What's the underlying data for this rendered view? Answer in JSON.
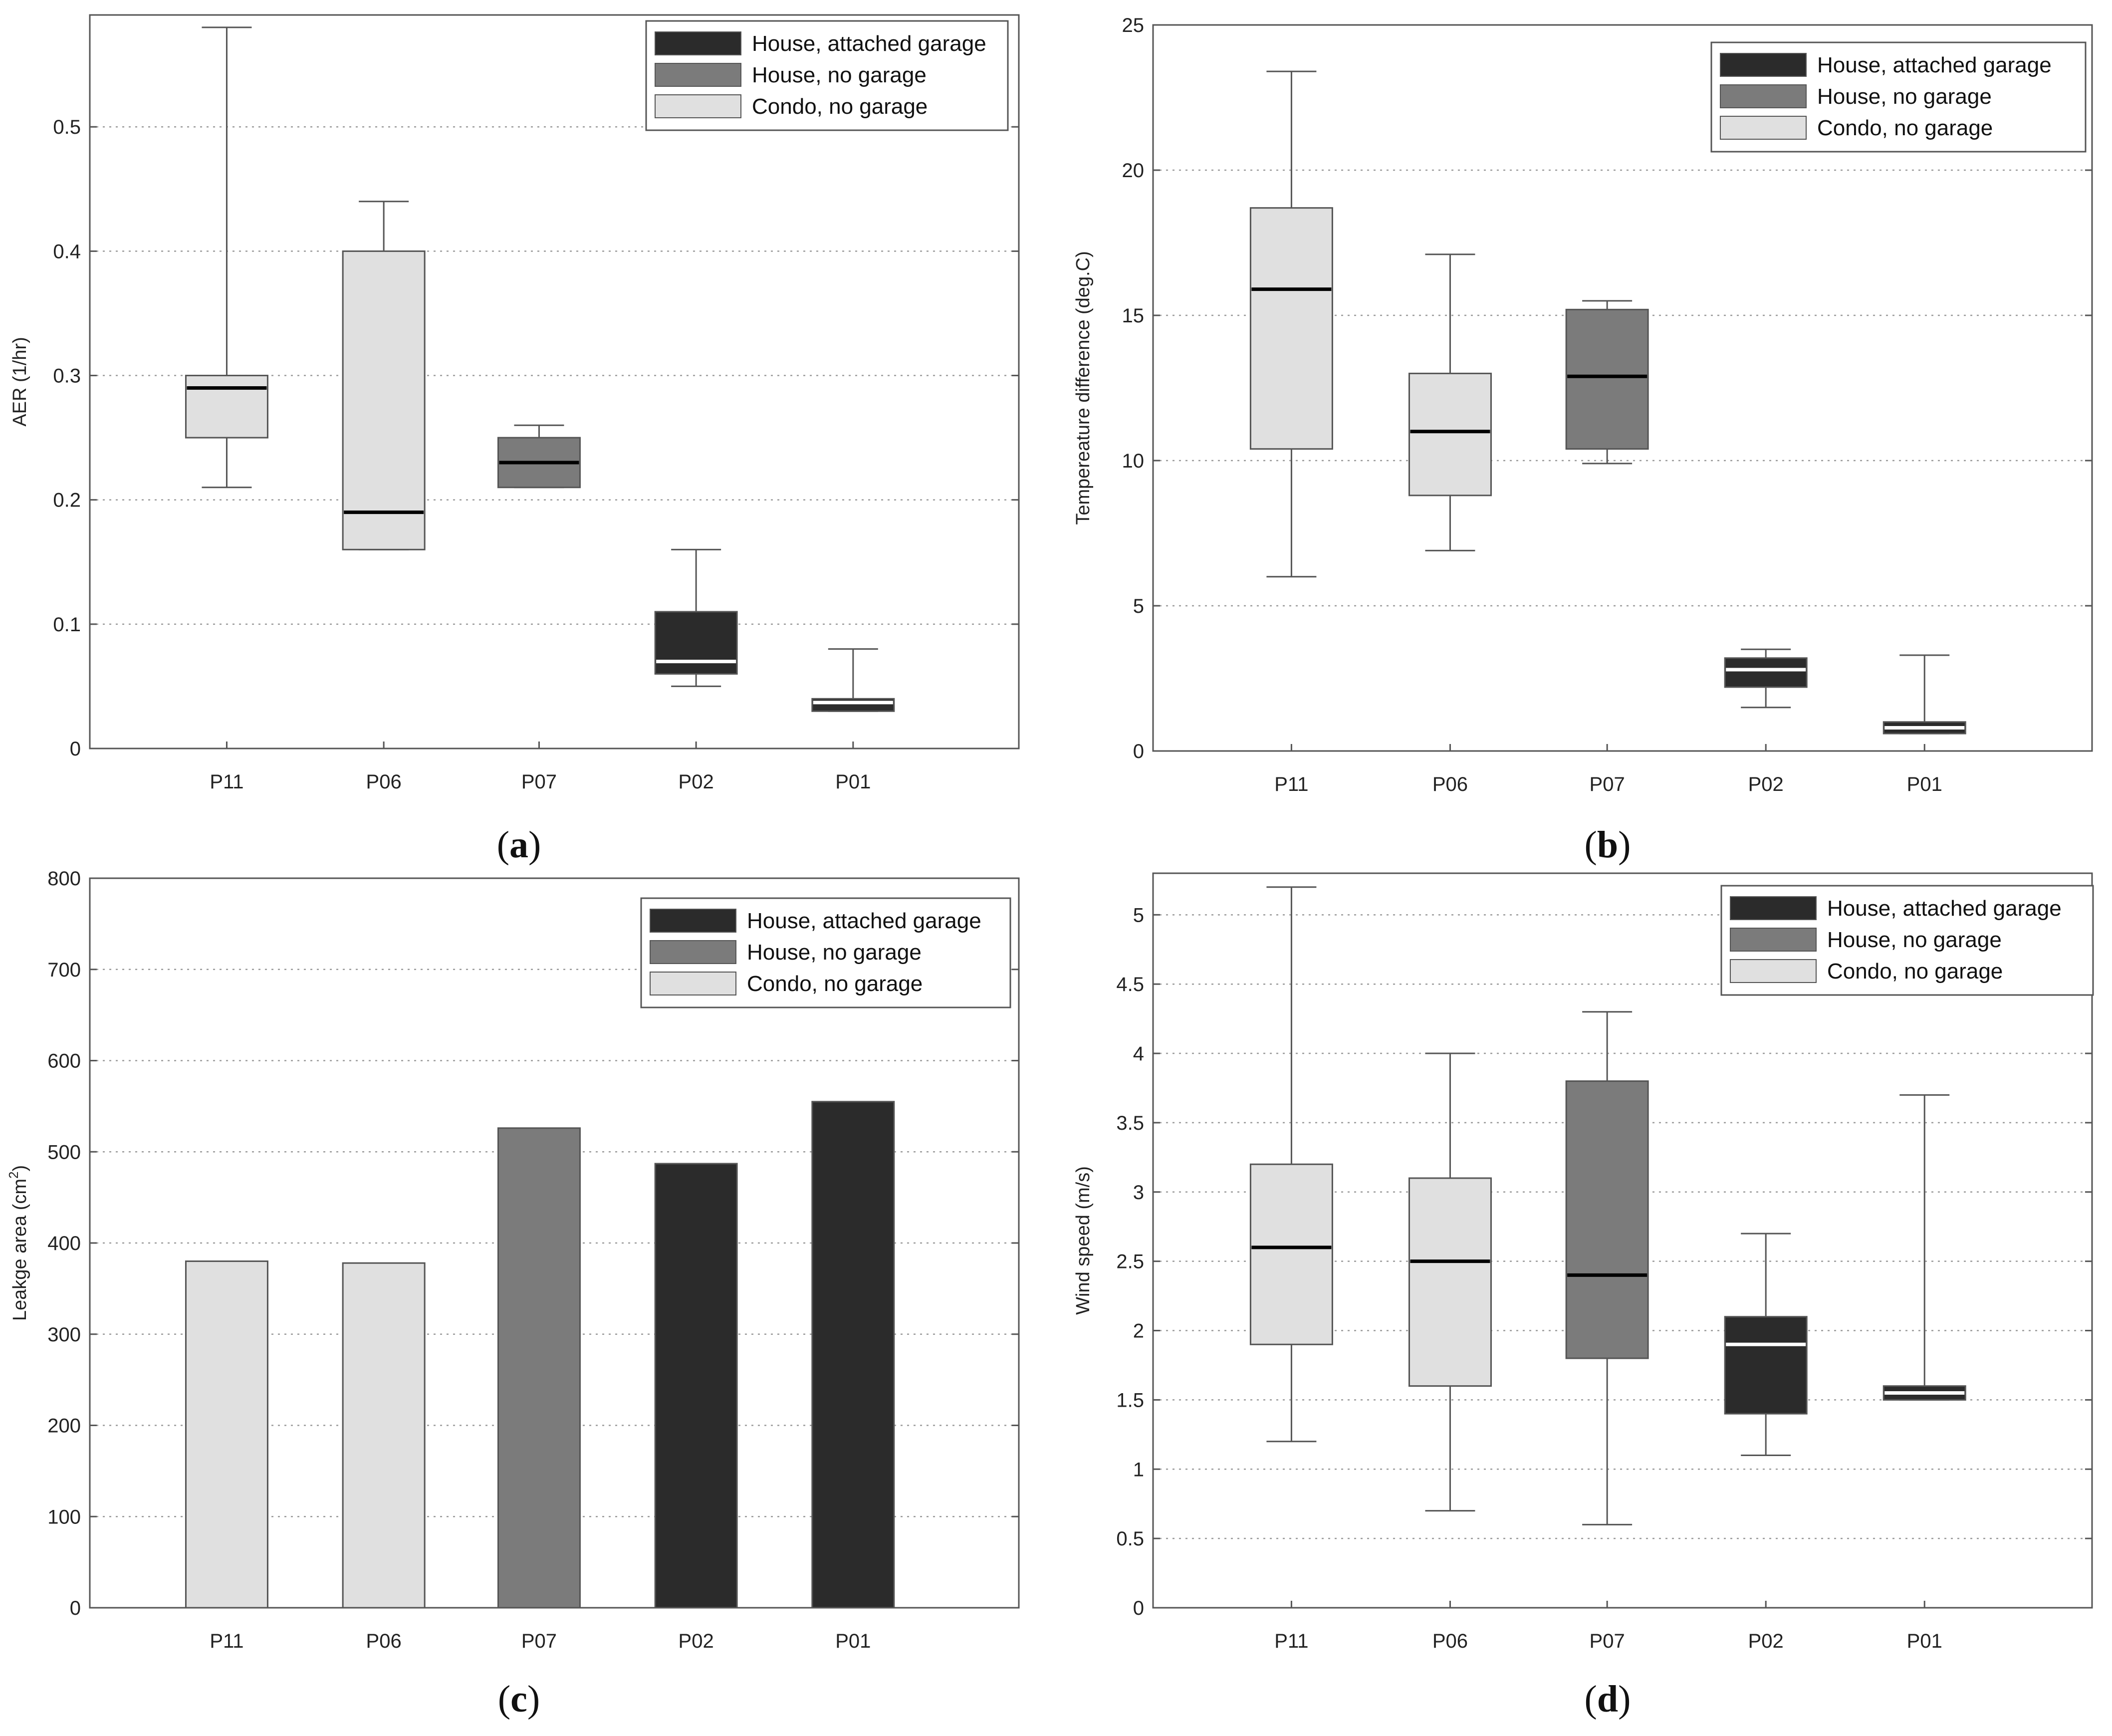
{
  "chart_data": [
    {
      "type": "box",
      "panel": "a",
      "title": "",
      "xlabel": "",
      "ylabel": "AER (1/hr)",
      "ylim": [
        0,
        0.59
      ],
      "yticks": [
        0,
        0.1,
        0.2,
        0.3,
        0.4,
        0.5
      ],
      "ytick_labels": [
        "0",
        "0.1",
        "0.2",
        "0.3",
        "0.4",
        "0.5"
      ],
      "legend_position": "top-right",
      "categories": [
        "P11",
        "P06",
        "P07",
        "P02",
        "P01"
      ],
      "groups": [
        "Condo, no garage",
        "Condo, no garage",
        "House, no garage",
        "House, attached garage",
        "House, attached garage"
      ],
      "boxes": [
        {
          "min": 0.21,
          "q1": 0.25,
          "median": 0.29,
          "q3": 0.3,
          "max": 0.58
        },
        {
          "min": 0.16,
          "q1": 0.16,
          "median": 0.19,
          "q3": 0.4,
          "max": 0.44
        },
        {
          "min": 0.21,
          "q1": 0.21,
          "median": 0.23,
          "q3": 0.25,
          "max": 0.26
        },
        {
          "min": 0.05,
          "q1": 0.06,
          "median": 0.07,
          "q3": 0.11,
          "max": 0.16
        },
        {
          "min": 0.03,
          "q1": 0.03,
          "median": 0.037,
          "q3": 0.04,
          "max": 0.08
        }
      ]
    },
    {
      "type": "box",
      "panel": "b",
      "title": "",
      "xlabel": "",
      "ylabel": "Tempereature difference (deg.C)",
      "ylim": [
        0,
        25
      ],
      "yticks": [
        0,
        5,
        10,
        15,
        20,
        25
      ],
      "ytick_labels": [
        "0",
        "5",
        "10",
        "15",
        "20",
        "25"
      ],
      "legend_position": "top-right",
      "categories": [
        "P11",
        "P06",
        "P07",
        "P02",
        "P01"
      ],
      "groups": [
        "Condo, no garage",
        "Condo, no garage",
        "House, no garage",
        "House, attached garage",
        "House, attached garage"
      ],
      "boxes": [
        {
          "min": 6.0,
          "q1": 10.4,
          "median": 15.9,
          "q3": 18.7,
          "max": 23.4
        },
        {
          "min": 6.9,
          "q1": 8.8,
          "median": 11.0,
          "q3": 13.0,
          "max": 17.1
        },
        {
          "min": 9.9,
          "q1": 10.4,
          "median": 12.9,
          "q3": 15.2,
          "max": 15.5
        },
        {
          "min": 1.5,
          "q1": 2.2,
          "median": 2.8,
          "q3": 3.2,
          "max": 3.5
        },
        {
          "min": 0.6,
          "q1": 0.6,
          "median": 0.8,
          "q3": 1.0,
          "max": 3.3
        }
      ]
    },
    {
      "type": "bar",
      "panel": "c",
      "title": "",
      "xlabel": "",
      "ylabel": "Leakge area (cm",
      "ylabel_sup": "2",
      "ylabel_end": ")",
      "ylim": [
        0,
        800
      ],
      "yticks": [
        0,
        100,
        200,
        300,
        400,
        500,
        600,
        700,
        800
      ],
      "ytick_labels": [
        "0",
        "100",
        "200",
        "300",
        "400",
        "500",
        "600",
        "700",
        "800"
      ],
      "legend_position": "top-right",
      "categories": [
        "P11",
        "P06",
        "P07",
        "P02",
        "P01"
      ],
      "groups": [
        "Condo, no garage",
        "Condo, no garage",
        "House, no garage",
        "House, attached garage",
        "House, attached garage"
      ],
      "values": [
        380,
        378,
        526,
        487,
        555
      ]
    },
    {
      "type": "box",
      "panel": "d",
      "title": "",
      "xlabel": "",
      "ylabel": "Wind speed (m/s)",
      "ylim": [
        0,
        5.3
      ],
      "yticks": [
        0,
        0.5,
        1,
        1.5,
        2,
        2.5,
        3,
        3.5,
        4,
        4.5,
        5
      ],
      "ytick_labels": [
        "0",
        "0.5",
        "1",
        "1.5",
        "2",
        "2.5",
        "3",
        "3.5",
        "4",
        "4.5",
        "5"
      ],
      "legend_position": "top-right",
      "categories": [
        "P11",
        "P06",
        "P07",
        "P02",
        "P01"
      ],
      "groups": [
        "Condo, no garage",
        "Condo, no garage",
        "House, no garage",
        "House, attached garage",
        "House, attached garage"
      ],
      "boxes": [
        {
          "min": 1.2,
          "q1": 1.9,
          "median": 2.6,
          "q3": 3.2,
          "max": 5.2
        },
        {
          "min": 0.7,
          "q1": 1.6,
          "median": 2.5,
          "q3": 3.1,
          "max": 4.0
        },
        {
          "min": 0.6,
          "q1": 1.8,
          "median": 2.4,
          "q3": 3.8,
          "max": 4.3
        },
        {
          "min": 1.1,
          "q1": 1.4,
          "median": 1.9,
          "q3": 2.1,
          "max": 2.7
        },
        {
          "min": 1.5,
          "q1": 1.5,
          "median": 1.55,
          "q3": 1.6,
          "max": 3.7
        }
      ]
    }
  ],
  "legend": {
    "entries": [
      {
        "label": "House, attached garage",
        "color": "#2b2b2b"
      },
      {
        "label": "House, no garage",
        "color": "#7b7b7b"
      },
      {
        "label": "Condo, no garage",
        "color": "#e0e0e0"
      }
    ]
  },
  "group_colors": {
    "House, attached garage": "#2b2b2b",
    "House, no garage": "#7b7b7b",
    "Condo, no garage": "#e0e0e0"
  },
  "median_colors": {
    "House, attached garage": "#ffffff",
    "House, no garage": "#000000",
    "Condo, no garage": "#000000"
  },
  "panel_labels": [
    {
      "open": "(",
      "letter": "a",
      "close": ")"
    },
    {
      "open": "(",
      "letter": "b",
      "close": ")"
    },
    {
      "open": "(",
      "letter": "c",
      "close": ")"
    },
    {
      "open": "(",
      "letter": "d",
      "close": ")"
    }
  ]
}
